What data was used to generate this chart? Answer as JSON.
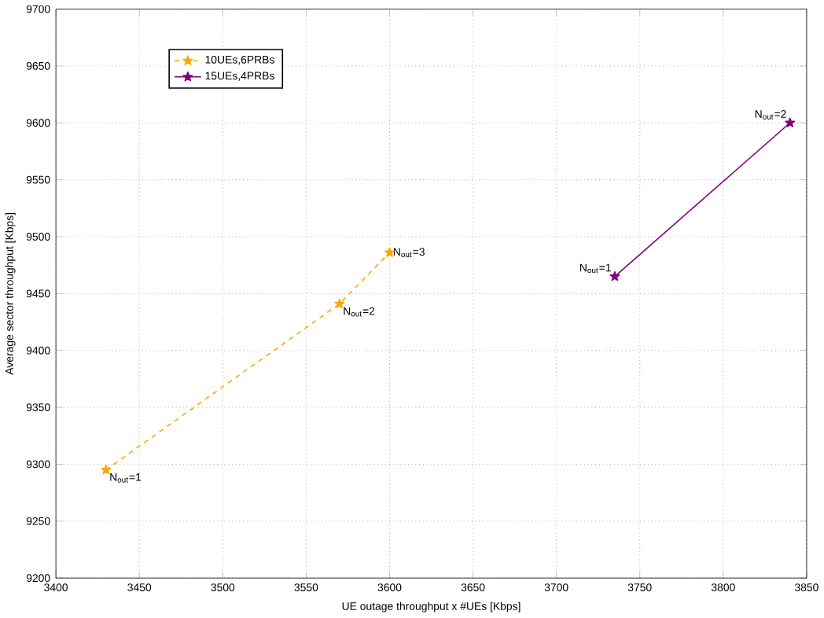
{
  "chart_data": {
    "type": "line",
    "xlabel": "UE outage throughput x #UEs [Kbps]",
    "ylabel": "Average sector throughput [Kbps]",
    "xlim": [
      3400,
      3850
    ],
    "ylim": [
      9200,
      9700
    ],
    "xticks": [
      3400,
      3450,
      3500,
      3550,
      3600,
      3650,
      3700,
      3750,
      3800,
      3850
    ],
    "yticks": [
      9200,
      9250,
      9300,
      9350,
      9400,
      9450,
      9500,
      9550,
      9600,
      9650,
      9700
    ],
    "grid": true,
    "legend": "top left",
    "marker": "star",
    "series": [
      {
        "name": "10UEs,6PRBs",
        "color": "#ffa500",
        "line_style": "dashed",
        "x": [
          3430,
          3570,
          3600
        ],
        "values": [
          9295,
          9441,
          9486
        ]
      },
      {
        "name": "15UEs,4PRBs",
        "color": "#7f007f",
        "line_style": "solid",
        "x": [
          3735,
          3840
        ],
        "values": [
          9465,
          9600
        ]
      }
    ],
    "annotations": [
      {
        "text": "N$_{out}$=1",
        "x": 3430,
        "y": 9295
      },
      {
        "text": "N$_{out}$=2",
        "x": 3570,
        "y": 9441
      },
      {
        "text": "N$_{out}$=3",
        "x": 3600,
        "y": 9486
      },
      {
        "text": "N$_{out}$=1",
        "x": 3735,
        "y": 9465
      },
      {
        "text": "N$_{out}$=2",
        "x": 3840,
        "y": 9600
      }
    ]
  }
}
